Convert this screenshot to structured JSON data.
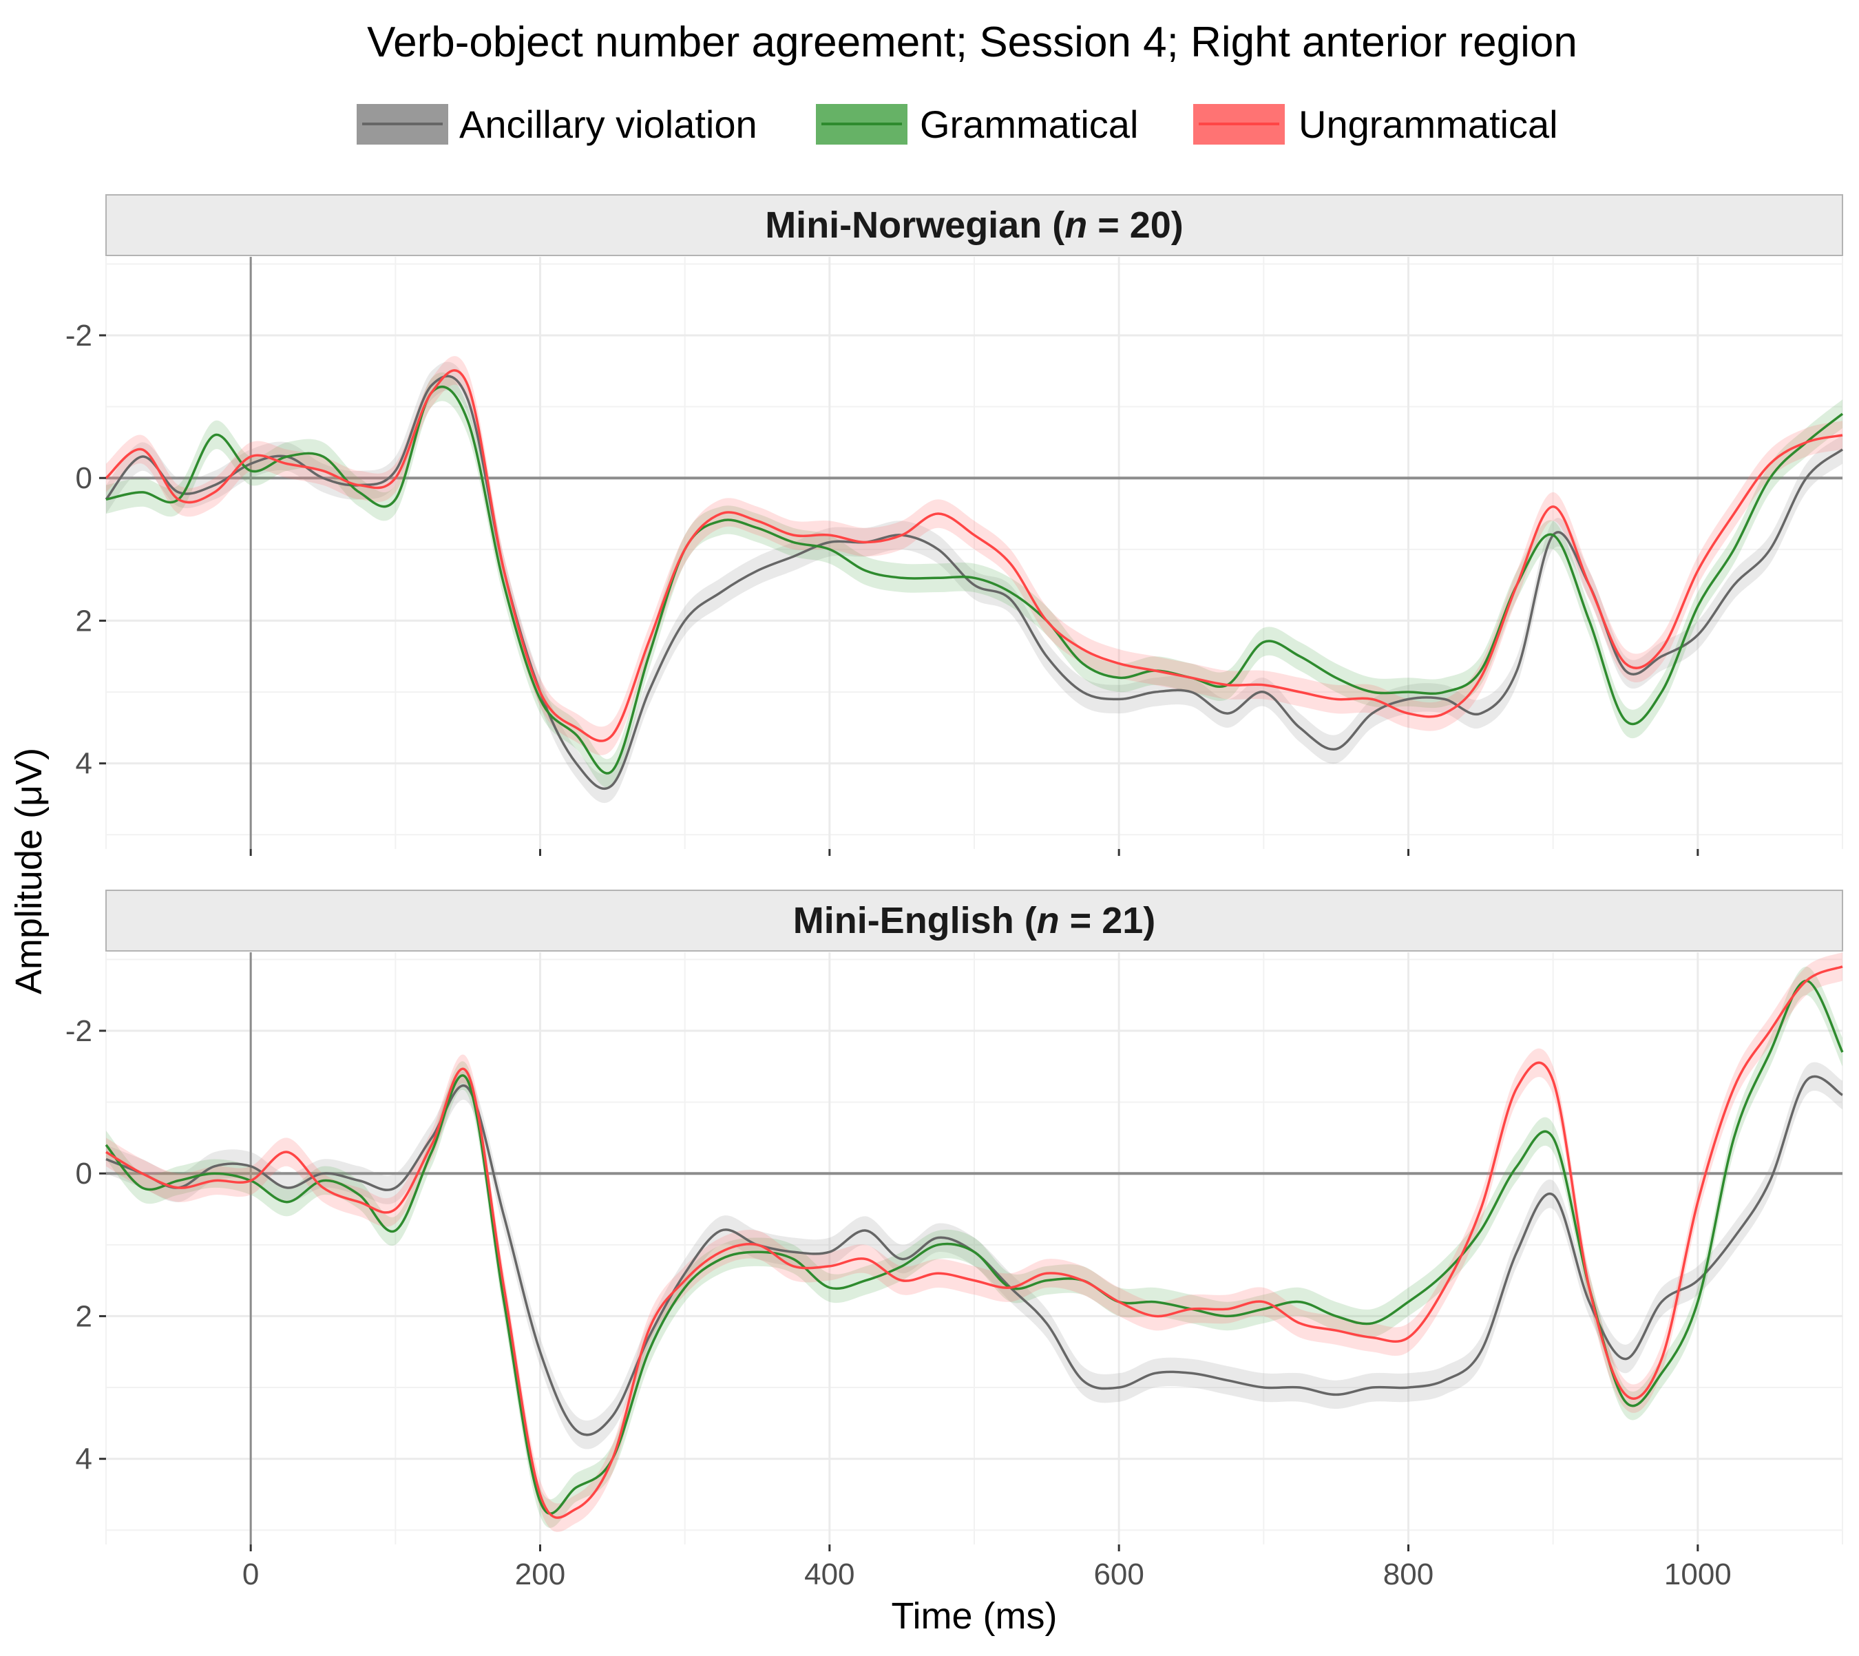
{
  "chart_data": {
    "type": "line",
    "title": "Verb-object number agreement; Session 4; Right anterior region",
    "xlabel": "Time (ms)",
    "ylabel": "Amplitude (μV)",
    "xlim": [
      -100,
      1100
    ],
    "ylim": [
      -3.1,
      5.2
    ],
    "y_reversed": true,
    "xticks": [
      0,
      200,
      400,
      600,
      800,
      1000
    ],
    "xtick_labels": [
      "0",
      "200",
      "400",
      "600",
      "800",
      "1000"
    ],
    "yticks": [
      -2,
      0,
      2,
      4
    ],
    "ytick_labels": [
      "-2",
      "0",
      "2",
      "4"
    ],
    "grid": true,
    "legend_position": "top",
    "series_style": [
      {
        "name": "Ancillary violation",
        "color": "#666666",
        "band_color": "#999999"
      },
      {
        "name": "Grammatical",
        "color": "#2e8b2e",
        "band_color": "#66b266"
      },
      {
        "name": "Ungrammatical",
        "color": "#ff4545",
        "band_color": "#ff7373"
      }
    ],
    "x": [
      -100,
      -75,
      -50,
      -25,
      0,
      25,
      50,
      75,
      100,
      125,
      150,
      175,
      200,
      225,
      250,
      275,
      300,
      325,
      350,
      375,
      400,
      425,
      450,
      475,
      500,
      525,
      550,
      575,
      600,
      625,
      650,
      675,
      700,
      725,
      750,
      775,
      800,
      825,
      850,
      875,
      900,
      925,
      950,
      975,
      1000,
      1025,
      1050,
      1075,
      1100
    ],
    "panels": [
      {
        "strip_prefix": "Mini-Norwegian (",
        "strip_n": "n",
        "strip_suffix": " = 20)",
        "series": [
          {
            "name": "Ancillary violation",
            "band": 0.2,
            "values": [
              0.3,
              -0.3,
              0.2,
              0.1,
              -0.2,
              -0.3,
              0.0,
              0.1,
              -0.1,
              -1.3,
              -1.1,
              1.3,
              3.0,
              4.0,
              4.3,
              3.0,
              2.0,
              1.6,
              1.3,
              1.1,
              0.9,
              0.9,
              0.8,
              1.0,
              1.5,
              1.7,
              2.5,
              3.0,
              3.1,
              3.0,
              3.0,
              3.3,
              3.0,
              3.5,
              3.8,
              3.3,
              3.1,
              3.1,
              3.3,
              2.7,
              0.8,
              1.5,
              2.7,
              2.5,
              2.2,
              1.5,
              1.0,
              0.0,
              -0.4
            ]
          },
          {
            "name": "Grammatical",
            "band": 0.2,
            "values": [
              0.3,
              0.2,
              0.3,
              -0.6,
              -0.1,
              -0.3,
              -0.3,
              0.2,
              0.3,
              -1.2,
              -0.8,
              1.5,
              3.1,
              3.6,
              4.1,
              2.5,
              1.0,
              0.6,
              0.7,
              0.9,
              1.0,
              1.3,
              1.4,
              1.4,
              1.4,
              1.6,
              2.0,
              2.6,
              2.8,
              2.7,
              2.8,
              2.9,
              2.3,
              2.5,
              2.8,
              3.0,
              3.0,
              3.0,
              2.7,
              1.5,
              0.8,
              2.0,
              3.4,
              3.0,
              1.8,
              1.0,
              0.0,
              -0.5,
              -0.9
            ]
          },
          {
            "name": "Ungrammatical",
            "band": 0.2,
            "values": [
              0.0,
              -0.4,
              0.3,
              0.2,
              -0.3,
              -0.2,
              -0.1,
              0.1,
              0.0,
              -1.2,
              -1.3,
              1.3,
              3.0,
              3.5,
              3.6,
              2.3,
              1.0,
              0.5,
              0.6,
              0.8,
              0.8,
              0.9,
              0.8,
              0.5,
              0.8,
              1.2,
              2.0,
              2.4,
              2.6,
              2.7,
              2.8,
              2.9,
              2.9,
              3.0,
              3.1,
              3.1,
              3.3,
              3.3,
              2.8,
              1.5,
              0.4,
              1.5,
              2.6,
              2.4,
              1.3,
              0.5,
              -0.2,
              -0.5,
              -0.6
            ]
          }
        ]
      },
      {
        "strip_prefix": "Mini-English (",
        "strip_n": "n",
        "strip_suffix": " = 21)",
        "series": [
          {
            "name": "Ancillary violation",
            "band": 0.2,
            "values": [
              -0.2,
              0.0,
              0.2,
              -0.1,
              -0.1,
              0.2,
              0.0,
              0.1,
              0.2,
              -0.5,
              -1.2,
              0.6,
              2.5,
              3.6,
              3.4,
              2.3,
              1.4,
              0.8,
              1.0,
              1.1,
              1.1,
              0.8,
              1.2,
              0.9,
              1.1,
              1.6,
              2.1,
              2.9,
              3.0,
              2.8,
              2.8,
              2.9,
              3.0,
              3.0,
              3.1,
              3.0,
              3.0,
              2.9,
              2.5,
              1.1,
              0.3,
              1.8,
              2.6,
              1.8,
              1.5,
              0.9,
              0.1,
              -1.3,
              -1.1
            ]
          },
          {
            "name": "Grammatical",
            "band": 0.2,
            "values": [
              -0.4,
              0.2,
              0.1,
              0.0,
              0.1,
              0.4,
              0.1,
              0.3,
              0.8,
              -0.3,
              -1.3,
              1.8,
              4.6,
              4.4,
              4.0,
              2.5,
              1.6,
              1.2,
              1.1,
              1.2,
              1.6,
              1.5,
              1.3,
              1.0,
              1.1,
              1.6,
              1.5,
              1.5,
              1.8,
              1.8,
              1.9,
              2.0,
              1.9,
              1.8,
              2.0,
              2.1,
              1.8,
              1.4,
              0.8,
              -0.1,
              -0.5,
              1.6,
              3.2,
              2.8,
              1.8,
              -0.5,
              -1.7,
              -2.7,
              -1.7
            ]
          },
          {
            "name": "Ungrammatical",
            "band": 0.2,
            "values": [
              -0.3,
              0.0,
              0.2,
              0.1,
              0.1,
              -0.3,
              0.2,
              0.4,
              0.5,
              -0.4,
              -1.4,
              1.6,
              4.5,
              4.7,
              4.0,
              2.2,
              1.5,
              1.1,
              1.0,
              1.3,
              1.3,
              1.2,
              1.5,
              1.4,
              1.5,
              1.6,
              1.4,
              1.5,
              1.8,
              2.0,
              1.9,
              1.9,
              1.8,
              2.1,
              2.2,
              2.3,
              2.3,
              1.6,
              0.5,
              -1.2,
              -1.3,
              1.6,
              3.1,
              2.6,
              0.4,
              -1.2,
              -2.0,
              -2.7,
              -2.9
            ]
          }
        ]
      }
    ]
  }
}
